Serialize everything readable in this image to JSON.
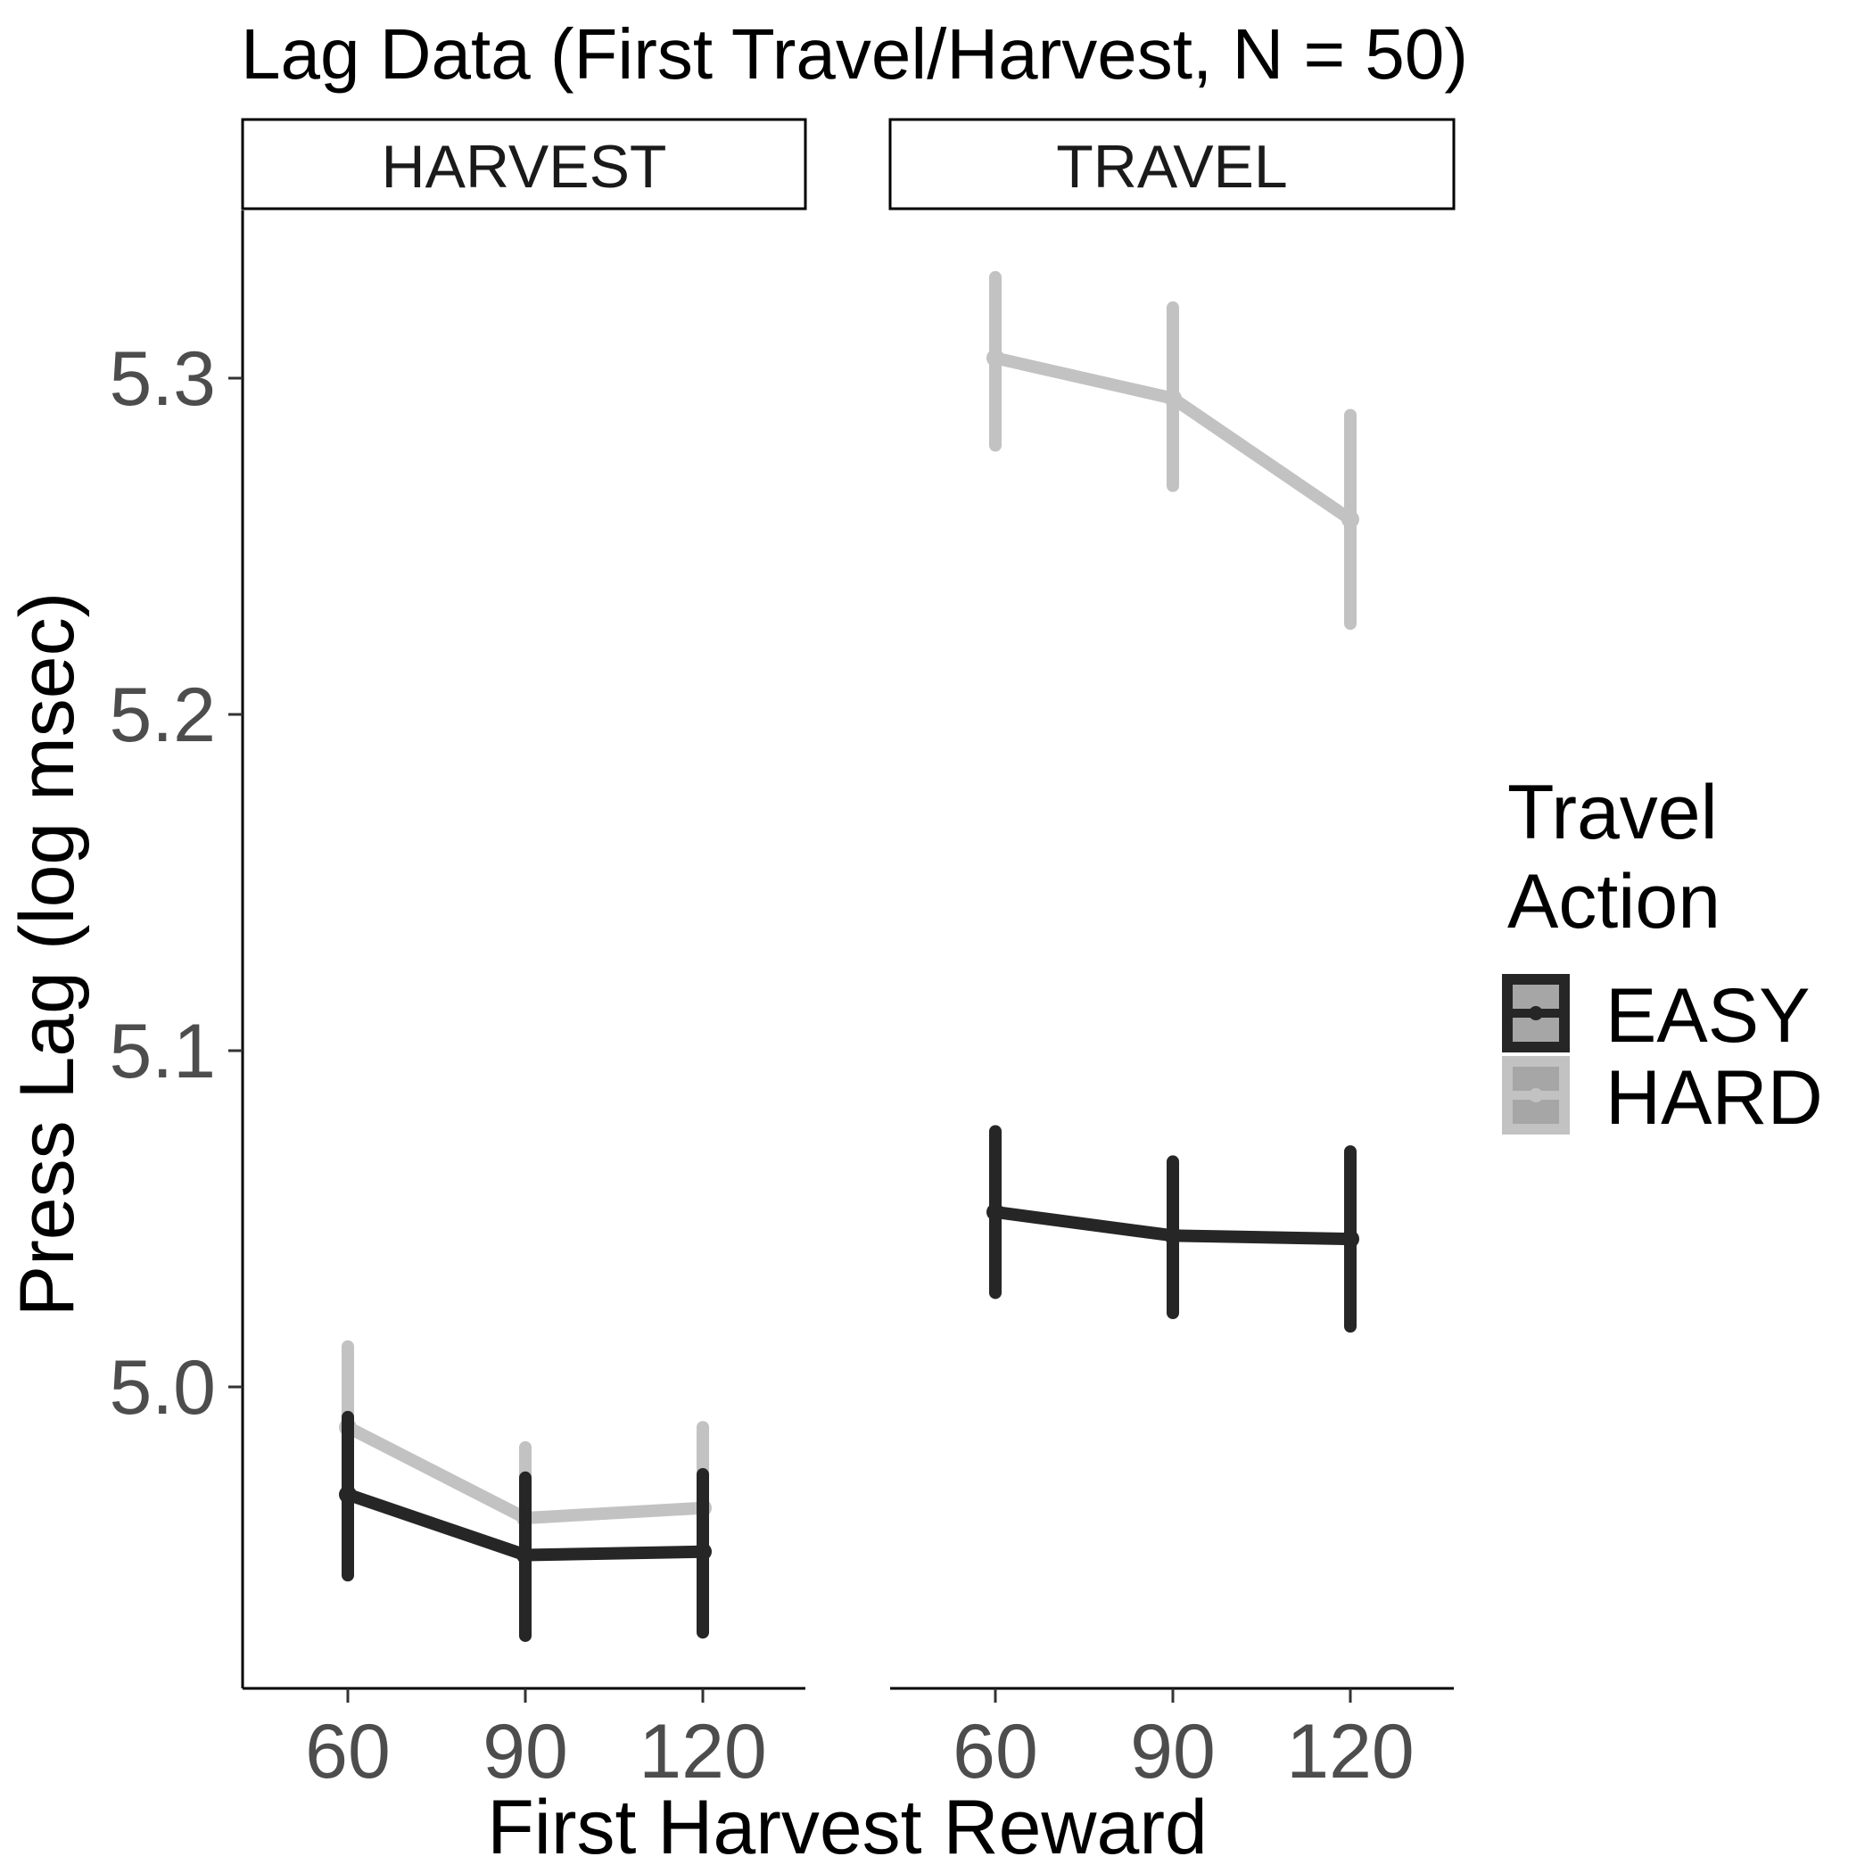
{
  "chart_data": {
    "type": "line",
    "title": "Lag Data (First Travel/Harvest, N = 50)",
    "xlabel": "First Harvest Reward",
    "ylabel": "Press Lag (log msec)",
    "x": [
      60,
      90,
      120
    ],
    "x_tick_labels": [
      "60",
      "90",
      "120"
    ],
    "y_ticks": [
      5.0,
      5.1,
      5.2,
      5.3
    ],
    "y_tick_labels": [
      "5.0",
      "5.1",
      "5.2",
      "5.3"
    ],
    "ylim": [
      4.91,
      5.35
    ],
    "grid": false,
    "legend_placement": "right",
    "legend_title_lines": [
      "Travel",
      "Action"
    ],
    "facets": [
      {
        "label": "HARVEST",
        "series": [
          {
            "name": "EASY",
            "color": "#262626",
            "values": [
              4.968,
              4.95,
              4.951
            ],
            "lower": [
              4.944,
              4.926,
              4.927
            ],
            "upper": [
              4.991,
              4.973,
              4.974
            ]
          },
          {
            "name": "HARD",
            "color": "#c2c2c2",
            "values": [
              4.988,
              4.961,
              4.964
            ],
            "lower": [
              4.963,
              4.937,
              4.94
            ],
            "upper": [
              5.012,
              4.982,
              4.988
            ]
          }
        ]
      },
      {
        "label": "TRAVEL",
        "series": [
          {
            "name": "EASY",
            "color": "#262626",
            "values": [
              5.052,
              5.045,
              5.044
            ],
            "lower": [
              5.028,
              5.022,
              5.018
            ],
            "upper": [
              5.076,
              5.067,
              5.07
            ]
          },
          {
            "name": "HARD",
            "color": "#c2c2c2",
            "values": [
              5.306,
              5.294,
              5.258
            ],
            "lower": [
              5.28,
              5.268,
              5.227
            ],
            "upper": [
              5.33,
              5.321,
              5.289
            ]
          }
        ]
      }
    ],
    "legend": [
      {
        "label": "EASY",
        "color": "#262626"
      },
      {
        "label": "HARD",
        "color": "#c2c2c2"
      }
    ]
  }
}
